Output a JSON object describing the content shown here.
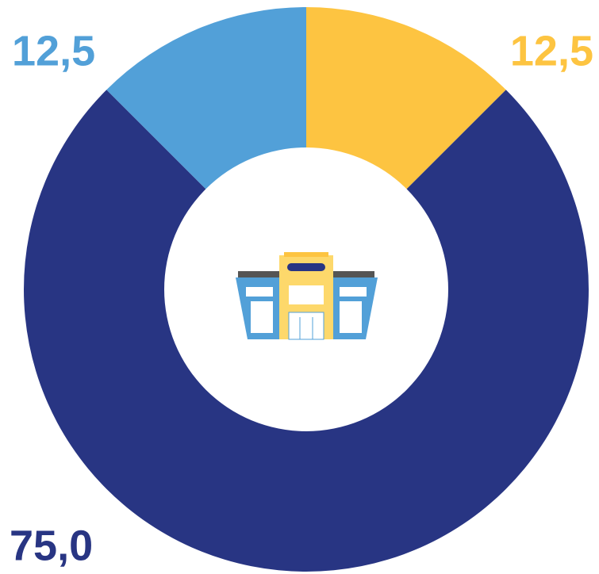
{
  "chart_data": {
    "type": "donut",
    "values": [
      12.5,
      75.0,
      12.5
    ],
    "value_labels": [
      "12,5",
      "75,0",
      "12,5"
    ],
    "colors": [
      "#fdc441",
      "#283583",
      "#52a0d8"
    ]
  }
}
